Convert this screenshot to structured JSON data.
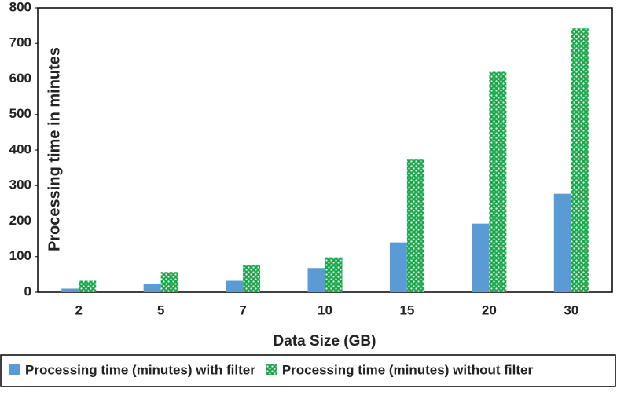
{
  "chart_data": {
    "type": "bar",
    "x_label": "Data Size (GB)",
    "y_label": "Processing time in minutes",
    "categories": [
      "2",
      "5",
      "7",
      "10",
      "15",
      "20",
      "30"
    ],
    "series": [
      {
        "name": "Processing time (minutes) with filter",
        "color": "#5b9bd5",
        "values": [
          10,
          23,
          32,
          68,
          140,
          193,
          277
        ]
      },
      {
        "name": "Processing time (minutes) without filter",
        "color": "#1aa84a",
        "pattern": "dots",
        "values": [
          32,
          57,
          77,
          98,
          373,
          620,
          742
        ]
      }
    ],
    "ylim": [
      0,
      800
    ],
    "yticks": [
      0,
      100,
      200,
      300,
      400,
      500,
      600,
      700,
      800
    ],
    "grid": false
  }
}
